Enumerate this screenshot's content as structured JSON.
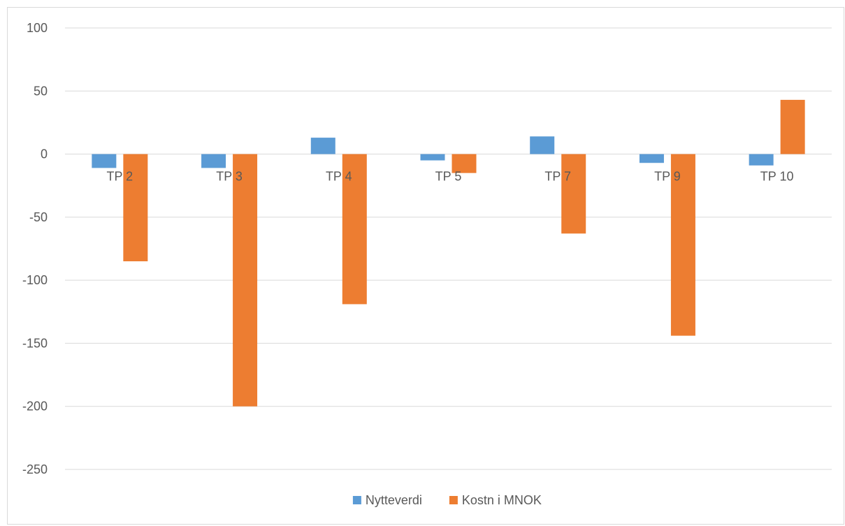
{
  "chart_data": {
    "type": "bar",
    "categories": [
      "TP 2",
      "TP 3",
      "TP 4",
      "TP 5",
      "TP 7",
      "TP 9",
      "TP 10"
    ],
    "series": [
      {
        "name": "Nytteverdi",
        "color": "#5b9bd5",
        "values": [
          -11,
          -11,
          13,
          -5,
          14,
          -7,
          -9
        ]
      },
      {
        "name": "Kostn i MNOK",
        "color": "#ed7d31",
        "values": [
          -85,
          -200,
          -119,
          -15,
          -63,
          -144,
          43
        ]
      }
    ],
    "ylim": [
      -250,
      100
    ],
    "yticks": [
      100,
      50,
      0,
      -50,
      -100,
      -150,
      -200,
      -250
    ],
    "grid": true,
    "legend": "bottom",
    "title": "",
    "xlabel": "",
    "ylabel": ""
  }
}
